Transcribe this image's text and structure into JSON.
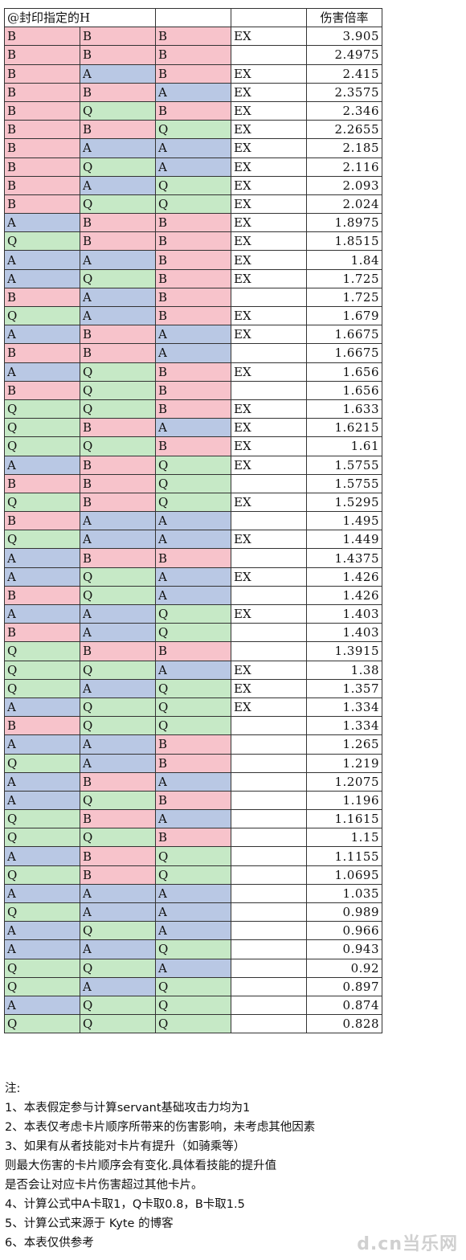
{
  "header": {
    "title": "@封印指定的H",
    "col_multiplier": "伤害倍率"
  },
  "rows": [
    {
      "c1": "B",
      "c2": "B",
      "c3": "B",
      "ex": "EX",
      "m": "3.905"
    },
    {
      "c1": "B",
      "c2": "B",
      "c3": "B",
      "ex": "",
      "m": "2.4975"
    },
    {
      "c1": "B",
      "c2": "A",
      "c3": "B",
      "ex": "EX",
      "m": "2.415"
    },
    {
      "c1": "B",
      "c2": "B",
      "c3": "A",
      "ex": "EX",
      "m": "2.3575"
    },
    {
      "c1": "B",
      "c2": "Q",
      "c3": "B",
      "ex": "EX",
      "m": "2.346"
    },
    {
      "c1": "B",
      "c2": "B",
      "c3": "Q",
      "ex": "EX",
      "m": "2.2655"
    },
    {
      "c1": "B",
      "c2": "A",
      "c3": "A",
      "ex": "EX",
      "m": "2.185"
    },
    {
      "c1": "B",
      "c2": "Q",
      "c3": "A",
      "ex": "EX",
      "m": "2.116"
    },
    {
      "c1": "B",
      "c2": "A",
      "c3": "Q",
      "ex": "EX",
      "m": "2.093"
    },
    {
      "c1": "B",
      "c2": "Q",
      "c3": "Q",
      "ex": "EX",
      "m": "2.024"
    },
    {
      "c1": "A",
      "c2": "B",
      "c3": "B",
      "ex": "EX",
      "m": "1.8975"
    },
    {
      "c1": "Q",
      "c2": "B",
      "c3": "B",
      "ex": "EX",
      "m": "1.8515"
    },
    {
      "c1": "A",
      "c2": "A",
      "c3": "B",
      "ex": "EX",
      "m": "1.84"
    },
    {
      "c1": "A",
      "c2": "Q",
      "c3": "B",
      "ex": "EX",
      "m": "1.725"
    },
    {
      "c1": "B",
      "c2": "A",
      "c3": "B",
      "ex": "",
      "m": "1.725"
    },
    {
      "c1": "Q",
      "c2": "A",
      "c3": "B",
      "ex": "EX",
      "m": "1.679"
    },
    {
      "c1": "A",
      "c2": "B",
      "c3": "A",
      "ex": "EX",
      "m": "1.6675"
    },
    {
      "c1": "B",
      "c2": "B",
      "c3": "A",
      "ex": "",
      "m": "1.6675"
    },
    {
      "c1": "A",
      "c2": "Q",
      "c3": "B",
      "ex": "EX",
      "m": "1.656"
    },
    {
      "c1": "B",
      "c2": "Q",
      "c3": "B",
      "ex": "",
      "m": "1.656"
    },
    {
      "c1": "Q",
      "c2": "Q",
      "c3": "B",
      "ex": "EX",
      "m": "1.633"
    },
    {
      "c1": "Q",
      "c2": "B",
      "c3": "A",
      "ex": "EX",
      "m": "1.6215"
    },
    {
      "c1": "Q",
      "c2": "Q",
      "c3": "B",
      "ex": "EX",
      "m": "1.61"
    },
    {
      "c1": "A",
      "c2": "B",
      "c3": "Q",
      "ex": "EX",
      "m": "1.5755"
    },
    {
      "c1": "B",
      "c2": "B",
      "c3": "Q",
      "ex": "",
      "m": "1.5755"
    },
    {
      "c1": "Q",
      "c2": "B",
      "c3": "Q",
      "ex": "EX",
      "m": "1.5295"
    },
    {
      "c1": "B",
      "c2": "A",
      "c3": "A",
      "ex": "",
      "m": "1.495"
    },
    {
      "c1": "Q",
      "c2": "A",
      "c3": "A",
      "ex": "EX",
      "m": "1.449"
    },
    {
      "c1": "A",
      "c2": "B",
      "c3": "B",
      "ex": "",
      "m": "1.4375"
    },
    {
      "c1": "A",
      "c2": "Q",
      "c3": "A",
      "ex": "EX",
      "m": "1.426"
    },
    {
      "c1": "B",
      "c2": "Q",
      "c3": "A",
      "ex": "",
      "m": "1.426"
    },
    {
      "c1": "A",
      "c2": "A",
      "c3": "Q",
      "ex": "EX",
      "m": "1.403"
    },
    {
      "c1": "B",
      "c2": "A",
      "c3": "Q",
      "ex": "",
      "m": "1.403"
    },
    {
      "c1": "Q",
      "c2": "B",
      "c3": "B",
      "ex": "",
      "m": "1.3915"
    },
    {
      "c1": "Q",
      "c2": "Q",
      "c3": "A",
      "ex": "EX",
      "m": "1.38"
    },
    {
      "c1": "Q",
      "c2": "A",
      "c3": "Q",
      "ex": "EX",
      "m": "1.357"
    },
    {
      "c1": "A",
      "c2": "Q",
      "c3": "Q",
      "ex": "EX",
      "m": "1.334"
    },
    {
      "c1": "B",
      "c2": "Q",
      "c3": "Q",
      "ex": "",
      "m": "1.334"
    },
    {
      "c1": "A",
      "c2": "A",
      "c3": "B",
      "ex": "",
      "m": "1.265"
    },
    {
      "c1": "Q",
      "c2": "A",
      "c3": "B",
      "ex": "",
      "m": "1.219"
    },
    {
      "c1": "A",
      "c2": "B",
      "c3": "A",
      "ex": "",
      "m": "1.2075"
    },
    {
      "c1": "A",
      "c2": "Q",
      "c3": "B",
      "ex": "",
      "m": "1.196"
    },
    {
      "c1": "Q",
      "c2": "B",
      "c3": "A",
      "ex": "",
      "m": "1.1615"
    },
    {
      "c1": "Q",
      "c2": "Q",
      "c3": "B",
      "ex": "",
      "m": "1.15"
    },
    {
      "c1": "A",
      "c2": "B",
      "c3": "Q",
      "ex": "",
      "m": "1.1155"
    },
    {
      "c1": "Q",
      "c2": "B",
      "c3": "Q",
      "ex": "",
      "m": "1.0695"
    },
    {
      "c1": "A",
      "c2": "A",
      "c3": "A",
      "ex": "",
      "m": "1.035"
    },
    {
      "c1": "Q",
      "c2": "A",
      "c3": "A",
      "ex": "",
      "m": "0.989"
    },
    {
      "c1": "A",
      "c2": "Q",
      "c3": "A",
      "ex": "",
      "m": "0.966"
    },
    {
      "c1": "A",
      "c2": "A",
      "c3": "Q",
      "ex": "",
      "m": "0.943"
    },
    {
      "c1": "Q",
      "c2": "Q",
      "c3": "A",
      "ex": "",
      "m": "0.92"
    },
    {
      "c1": "Q",
      "c2": "A",
      "c3": "Q",
      "ex": "",
      "m": "0.897"
    },
    {
      "c1": "A",
      "c2": "Q",
      "c3": "Q",
      "ex": "",
      "m": "0.874"
    },
    {
      "c1": "Q",
      "c2": "Q",
      "c3": "Q",
      "ex": "",
      "m": "0.828"
    }
  ],
  "card_colors": {
    "B": "#f7c3cb",
    "A": "#b9c8e4",
    "Q": "#c6e9c6"
  },
  "notes": [
    "注:",
    "1、本表假定参与计算servant基础攻击力均为1",
    "2、本表仅考虑卡片顺序所带来的伤害影响，未考虑其他因素",
    "3、如果有从者技能对卡片有提升（如骑乘等）",
    "则最大伤害的卡片顺序会有变化.具体看技能的提升值",
    "是否会让对应卡片伤害超过其他卡片。",
    "4、计算公式中A卡取1，Q卡取0.8，B卡取1.5",
    "5、计算公式来源于 Kyte 的博客",
    "6、本表仅供参考"
  ],
  "watermark": "d.cn当乐网"
}
